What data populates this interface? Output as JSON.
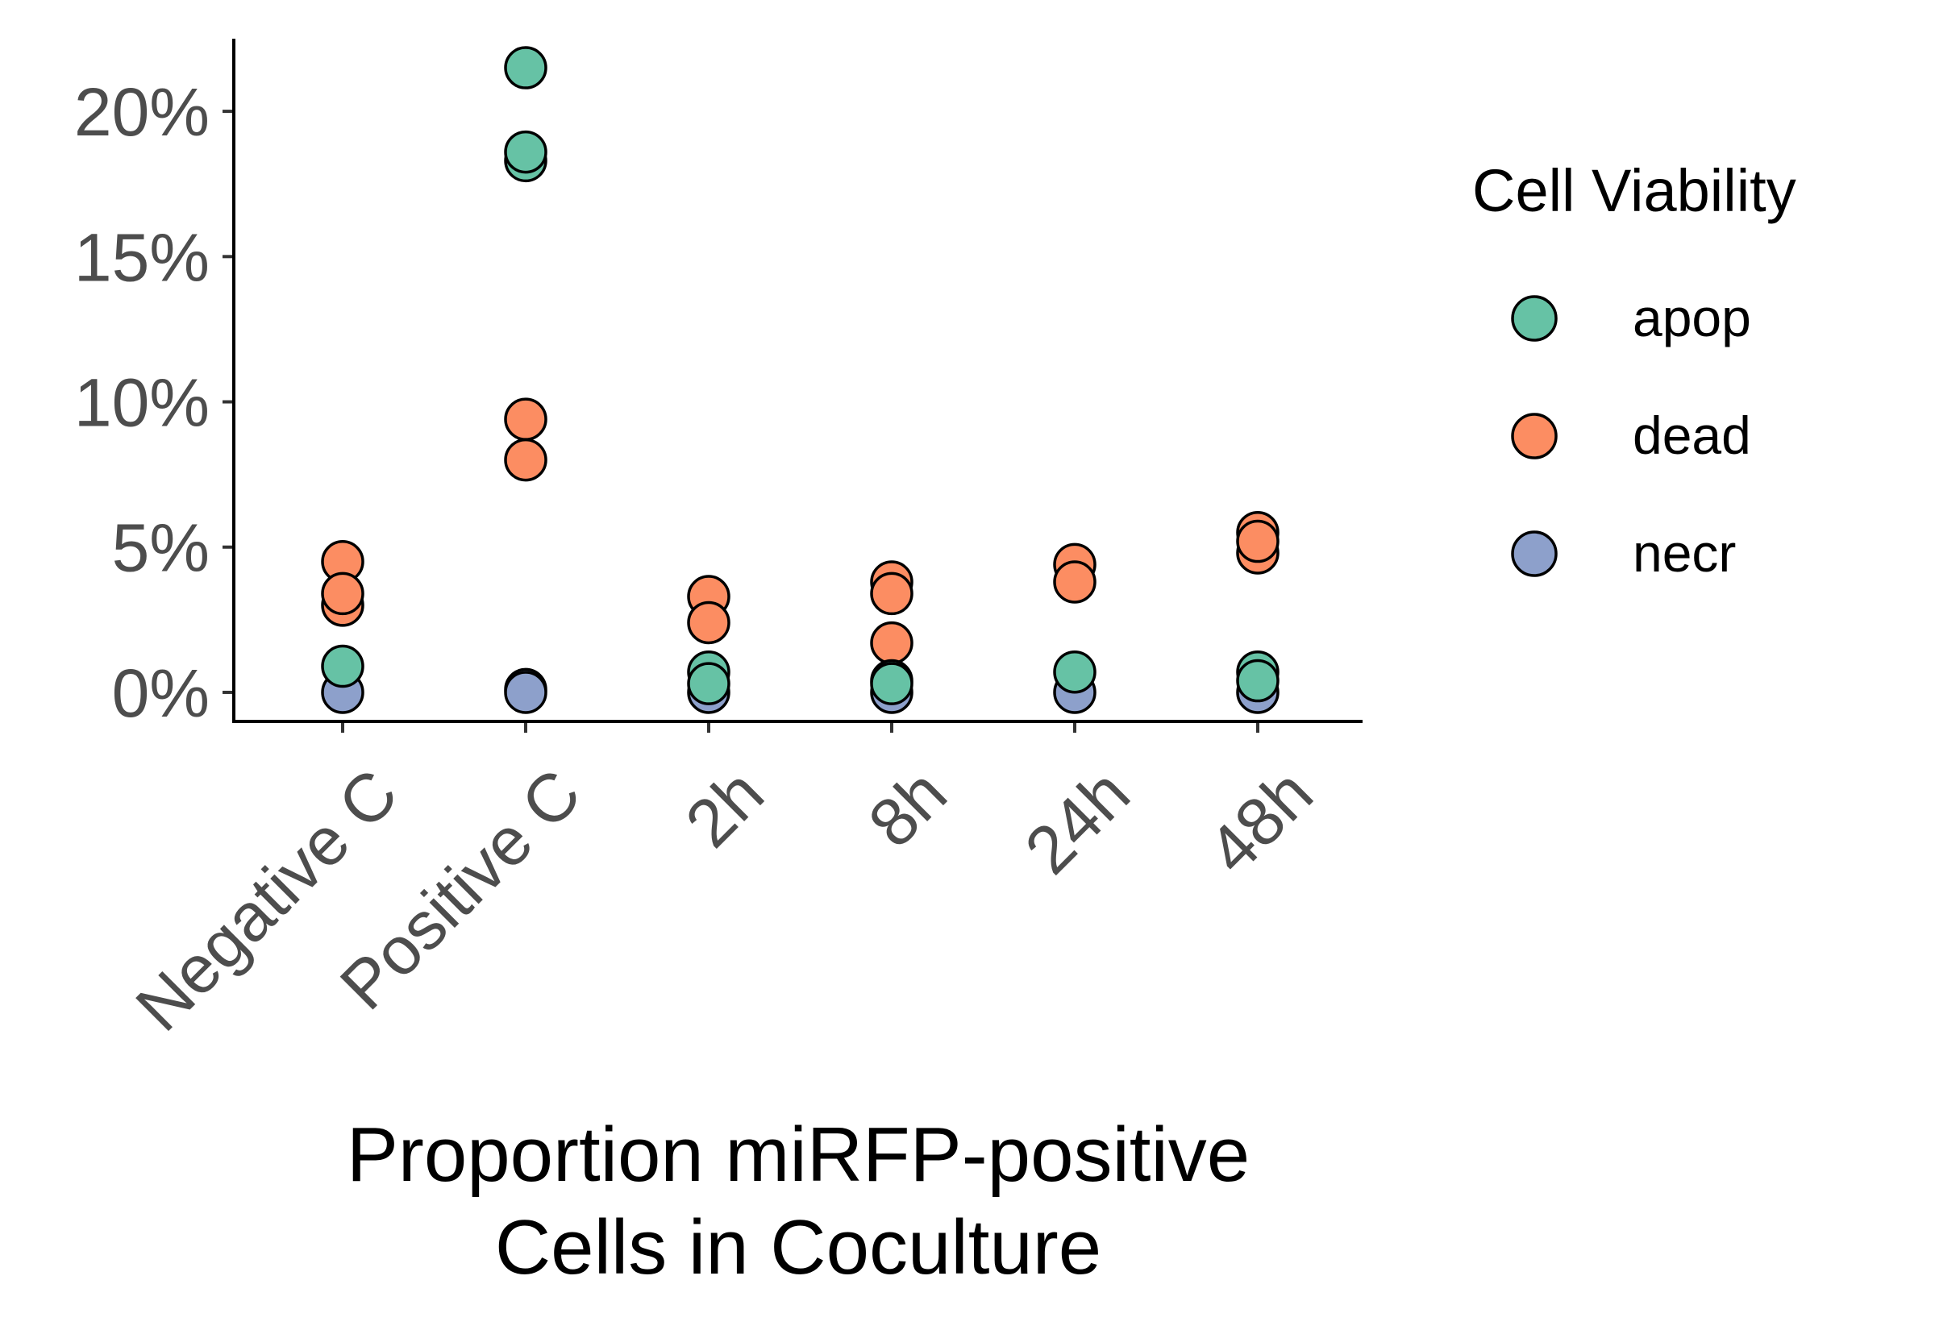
{
  "chart_data": {
    "type": "scatter",
    "title": "",
    "xlabel_lines": [
      "Proportion miRFP-positive",
      "Cells in Coculture"
    ],
    "ylabel": "",
    "categories": [
      "Negative C",
      "Positive C",
      "2h",
      "8h",
      "24h",
      "48h"
    ],
    "y_ticks": [
      0,
      5,
      10,
      15,
      20
    ],
    "y_tick_labels": [
      "0%",
      "5%",
      "10%",
      "15%",
      "20%"
    ],
    "ylim": [
      -1,
      22.5
    ],
    "grid": false,
    "legend": {
      "title": "Cell Viability",
      "placement": "right"
    },
    "series": [
      {
        "name": "apop",
        "color": "#66c2a5",
        "points": [
          {
            "x": "Negative C",
            "y": 0.9
          },
          {
            "x": "Positive C",
            "y": 21.5
          },
          {
            "x": "Positive C",
            "y": 18.3
          },
          {
            "x": "Positive C",
            "y": 18.6
          },
          {
            "x": "2h",
            "y": 0.7
          },
          {
            "x": "2h",
            "y": 0.3
          },
          {
            "x": "8h",
            "y": 0.4
          },
          {
            "x": "8h",
            "y": 0.3
          },
          {
            "x": "24h",
            "y": 0.7
          },
          {
            "x": "48h",
            "y": 0.7
          },
          {
            "x": "48h",
            "y": 0.4
          }
        ]
      },
      {
        "name": "dead",
        "color": "#fc8d62",
        "points": [
          {
            "x": "Negative C",
            "y": 4.5
          },
          {
            "x": "Negative C",
            "y": 3.0
          },
          {
            "x": "Negative C",
            "y": 3.4
          },
          {
            "x": "Positive C",
            "y": 9.4
          },
          {
            "x": "Positive C",
            "y": 8.0
          },
          {
            "x": "2h",
            "y": 3.3
          },
          {
            "x": "2h",
            "y": 2.4
          },
          {
            "x": "8h",
            "y": 3.8
          },
          {
            "x": "8h",
            "y": 3.4
          },
          {
            "x": "8h",
            "y": 1.7
          },
          {
            "x": "24h",
            "y": 4.4
          },
          {
            "x": "24h",
            "y": 3.8
          },
          {
            "x": "48h",
            "y": 5.5
          },
          {
            "x": "48h",
            "y": 4.8
          },
          {
            "x": "48h",
            "y": 5.2
          }
        ]
      },
      {
        "name": "necr",
        "color": "#8da0cb",
        "points": [
          {
            "x": "Negative C",
            "y": 0.0
          },
          {
            "x": "Positive C",
            "y": 0.1
          },
          {
            "x": "Positive C",
            "y": 0.0
          },
          {
            "x": "2h",
            "y": 0.0
          },
          {
            "x": "8h",
            "y": 0.0
          },
          {
            "x": "24h",
            "y": 0.0
          },
          {
            "x": "48h",
            "y": 0.0
          }
        ]
      }
    ]
  }
}
